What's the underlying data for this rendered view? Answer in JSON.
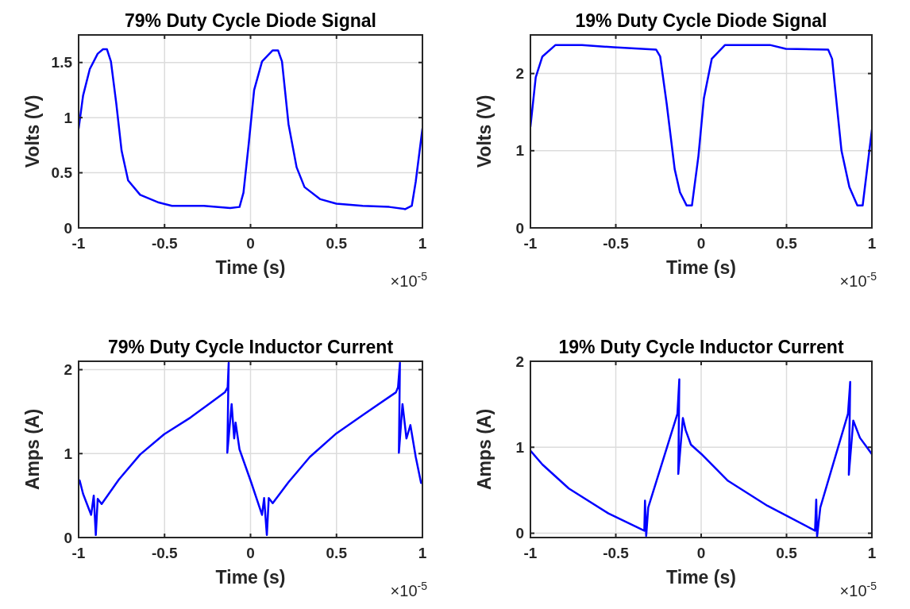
{
  "chart_data": [
    {
      "type": "line",
      "title": "79% Duty Cycle Diode Signal",
      "xlabel": "Time (s)",
      "ylabel": "Volts (V)",
      "annotations": [
        "×10$^{-5}$"
      ],
      "xlim": [
        -1,
        1
      ],
      "ylim": [
        0,
        1.75
      ],
      "xticks": [
        -1,
        -0.5,
        0,
        0.5,
        1
      ],
      "yticks": [
        0,
        0.5,
        1,
        1.5
      ],
      "grid": true,
      "series": [
        {
          "color": "#0000ff",
          "x": [
            -1,
            -0.974,
            -0.935,
            -0.889,
            -0.858,
            -0.835,
            -0.812,
            -0.781,
            -0.75,
            -0.712,
            -0.642,
            -0.534,
            -0.457,
            -0.272,
            -0.118,
            -0.064,
            -0.041,
            -0.01,
            0.021,
            0.067,
            0.129,
            0.16,
            0.183,
            0.221,
            0.268,
            0.314,
            0.406,
            0.499,
            0.653,
            0.807,
            0.9,
            0.938,
            0.961,
            1
          ],
          "values": [
            0.9,
            1.2,
            1.44,
            1.58,
            1.62,
            1.62,
            1.51,
            1.13,
            0.7,
            0.43,
            0.3,
            0.23,
            0.2,
            0.2,
            0.18,
            0.19,
            0.32,
            0.77,
            1.25,
            1.51,
            1.61,
            1.61,
            1.51,
            0.94,
            0.55,
            0.37,
            0.26,
            0.22,
            0.2,
            0.19,
            0.17,
            0.2,
            0.42,
            0.9
          ]
        }
      ]
    },
    {
      "type": "line",
      "title": "19% Duty Cycle Diode Signal",
      "xlabel": "Time (s)",
      "ylabel": "Volts (V)",
      "annotations": [
        "×10$^{-5}$"
      ],
      "xlim": [
        -1,
        1
      ],
      "ylim": [
        0,
        2.5
      ],
      "xticks": [
        -1,
        -0.5,
        0,
        0.5,
        1
      ],
      "yticks": [
        0,
        1,
        2
      ],
      "grid": true,
      "series": [
        {
          "color": "#0000ff",
          "x": [
            -1,
            -0.969,
            -0.93,
            -0.853,
            -0.698,
            -0.512,
            -0.264,
            -0.24,
            -0.202,
            -0.155,
            -0.124,
            -0.085,
            -0.054,
            -0.016,
            0.016,
            0.062,
            0.14,
            0.403,
            0.496,
            0.744,
            0.767,
            0.822,
            0.868,
            0.915,
            0.946,
            1
          ],
          "values": [
            1.31,
            1.95,
            2.22,
            2.37,
            2.37,
            2.34,
            2.31,
            2.22,
            1.61,
            0.76,
            0.46,
            0.29,
            0.29,
            0.93,
            1.68,
            2.19,
            2.37,
            2.37,
            2.32,
            2.31,
            2.19,
            1,
            0.53,
            0.29,
            0.29,
            1.27
          ]
        }
      ]
    },
    {
      "type": "line",
      "title": "79% Duty Cycle Inductor Current",
      "xlabel": "Time (s)",
      "ylabel": "Amps (A)",
      "annotations": [
        "×10$^{-5}$"
      ],
      "xlim": [
        -1,
        1
      ],
      "ylim": [
        0,
        2.1
      ],
      "xticks": [
        -1,
        -0.5,
        0,
        0.5,
        1
      ],
      "yticks": [
        0,
        1,
        2
      ],
      "grid": true,
      "series": [
        {
          "color": "#0000ff",
          "x": [
            -0.994,
            -0.974,
            -0.927,
            -0.912,
            -0.9,
            -0.889,
            -0.866,
            -0.766,
            -0.642,
            -0.503,
            -0.349,
            -0.149,
            -0.133,
            -0.127,
            -0.135,
            -0.11,
            -0.095,
            -0.087,
            -0.064,
            0.005,
            0.067,
            0.079,
            0.095,
            0.106,
            0.129,
            0.221,
            0.345,
            0.499,
            0.653,
            0.846,
            0.858,
            0.869,
            0.863,
            0.884,
            0.907,
            0.93,
            0.961,
            0.992
          ],
          "values": [
            0.68,
            0.52,
            0.27,
            0.5,
            0.03,
            0.46,
            0.4,
            0.69,
            0.99,
            1.23,
            1.43,
            1.73,
            1.79,
            2.08,
            1.01,
            1.59,
            1.18,
            1.37,
            1.05,
            0.65,
            0.27,
            0.47,
            0.03,
            0.47,
            0.41,
            0.66,
            0.96,
            1.24,
            1.46,
            1.73,
            1.79,
            2.08,
            1.01,
            1.59,
            1.18,
            1.34,
            0.96,
            0.65
          ]
        }
      ]
    },
    {
      "type": "line",
      "title": "19% Duty Cycle Inductor Current",
      "xlabel": "Time (s)",
      "ylabel": "Amps (A)",
      "annotations": [
        "×10$^{-5}$"
      ],
      "xlim": [
        -1,
        1
      ],
      "ylim": [
        -0.05,
        2
      ],
      "xticks": [
        -1,
        -0.5,
        0,
        0.5,
        1
      ],
      "yticks": [
        0,
        1,
        2
      ],
      "grid": true,
      "series": [
        {
          "color": "#0000ff",
          "x": [
            -1,
            -0.93,
            -0.775,
            -0.543,
            -0.333,
            -0.329,
            -0.322,
            -0.31,
            -0.139,
            -0.128,
            -0.134,
            -0.107,
            -0.091,
            -0.06,
            0.002,
            0.157,
            0.388,
            0.667,
            0.674,
            0.679,
            0.698,
            0.86,
            0.873,
            0.865,
            0.891,
            0.93,
            1
          ],
          "values": [
            0.96,
            0.8,
            0.52,
            0.23,
            0.03,
            0.38,
            -0.03,
            0.3,
            1.39,
            1.79,
            0.69,
            1.34,
            1.2,
            1.03,
            0.92,
            0.61,
            0.32,
            0.03,
            0.39,
            -0.04,
            0.3,
            1.39,
            1.76,
            0.68,
            1.31,
            1.11,
            0.92
          ]
        }
      ]
    }
  ]
}
